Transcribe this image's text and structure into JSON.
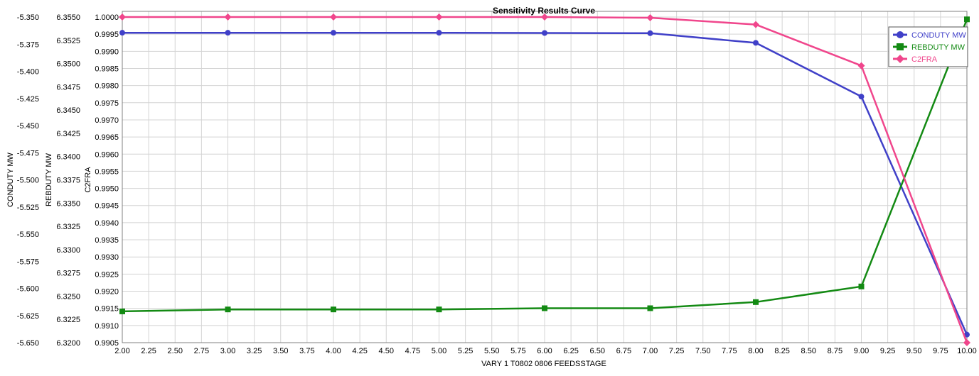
{
  "chart_data": {
    "type": "line",
    "title": "Sensitivity Results Curve",
    "xlabel": "VARY 1 T0802 0806 FEEDSSTAGE",
    "xlim": [
      2.0,
      10.0
    ],
    "x_tick_step": 0.25,
    "x_tick_decimals": 2,
    "x": [
      2,
      3,
      4,
      5,
      6,
      7,
      8,
      9,
      10
    ],
    "grid": true,
    "legend_position": "top-right",
    "axes": [
      {
        "id": "conduty",
        "label": "CONDUTY MW",
        "range": [
          -5.65,
          -5.35
        ],
        "step": 0.025,
        "decimals": 3
      },
      {
        "id": "rebduty",
        "label": "REBDUTY MW",
        "range": [
          6.32,
          6.355
        ],
        "step": 0.0025,
        "decimals": 4
      },
      {
        "id": "c2fra",
        "label": "C2FRA",
        "range": [
          0.9905,
          1.0
        ],
        "step": 0.0005,
        "decimals": 4
      }
    ],
    "series": [
      {
        "name": "CONDUTY MW",
        "axis": "conduty",
        "color": "#4040c8",
        "marker": "circle",
        "values": [
          -5.3645,
          -5.3645,
          -5.3645,
          -5.3645,
          -5.3647,
          -5.3649,
          -5.3738,
          -5.4233,
          -5.6426
        ]
      },
      {
        "name": "REBDUTY MW",
        "axis": "rebduty",
        "color": "#138a13",
        "marker": "square",
        "values": [
          6.32336,
          6.32357,
          6.32357,
          6.32357,
          6.3237,
          6.3237,
          6.32436,
          6.32604,
          6.35475
        ]
      },
      {
        "name": "C2FRA",
        "axis": "c2fra",
        "color": "#f0468c",
        "marker": "diamond",
        "values": [
          1.0,
          1.0,
          1.0,
          1.0,
          1.0,
          0.99998,
          0.99978,
          0.99858,
          0.9905
        ]
      }
    ]
  }
}
